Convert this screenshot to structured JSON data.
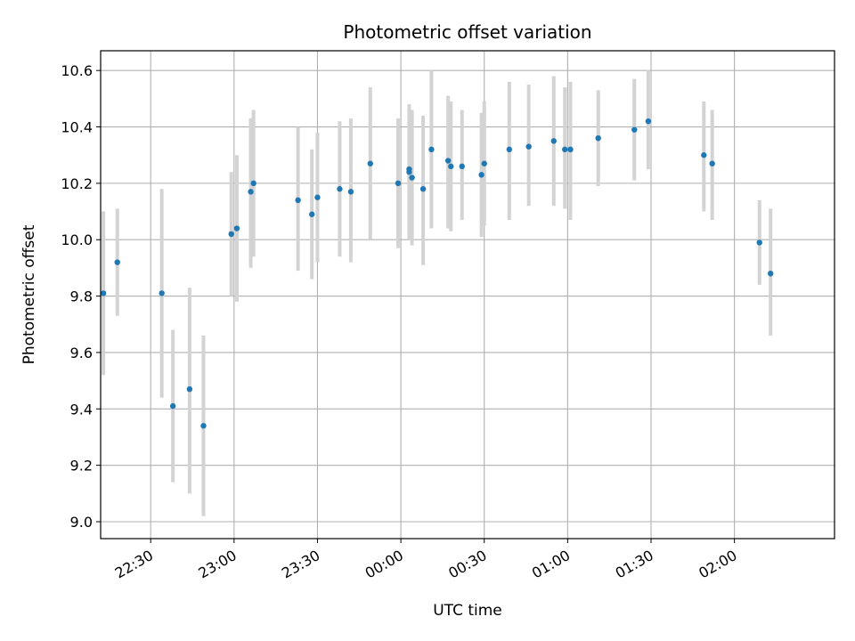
{
  "chart_data": {
    "type": "scatter",
    "title": "Photometric offset variation",
    "xlabel": "UTC time",
    "ylabel": "Photometric offset",
    "xlim": [
      "22:12",
      "02:36"
    ],
    "ylim": [
      8.94,
      10.67
    ],
    "x_ticks": [
      "22:30",
      "23:00",
      "23:30",
      "00:00",
      "00:30",
      "01:00",
      "01:30",
      "02:00"
    ],
    "y_ticks": [
      "9.0",
      "9.2",
      "9.4",
      "9.6",
      "9.8",
      "10.0",
      "10.2",
      "10.4",
      "10.6"
    ],
    "grid": true,
    "marker_color": "#1f77b4",
    "errorbar_color": "#d3d3d3",
    "points": [
      {
        "x": "22:13",
        "y": 9.81,
        "ylow": 9.52,
        "yhigh": 10.1
      },
      {
        "x": "22:18",
        "y": 9.92,
        "ylow": 9.73,
        "yhigh": 10.11
      },
      {
        "x": "22:34",
        "y": 9.81,
        "ylow": 9.44,
        "yhigh": 10.18
      },
      {
        "x": "22:38",
        "y": 9.41,
        "ylow": 9.14,
        "yhigh": 9.68
      },
      {
        "x": "22:44",
        "y": 9.47,
        "ylow": 9.1,
        "yhigh": 9.83
      },
      {
        "x": "22:49",
        "y": 9.34,
        "ylow": 9.02,
        "yhigh": 9.66
      },
      {
        "x": "22:59",
        "y": 10.02,
        "ylow": 9.8,
        "yhigh": 10.24
      },
      {
        "x": "23:01",
        "y": 10.04,
        "ylow": 9.78,
        "yhigh": 10.3
      },
      {
        "x": "23:06",
        "y": 10.17,
        "ylow": 9.9,
        "yhigh": 10.43
      },
      {
        "x": "23:07",
        "y": 10.2,
        "ylow": 9.94,
        "yhigh": 10.46
      },
      {
        "x": "23:23",
        "y": 10.14,
        "ylow": 9.89,
        "yhigh": 10.4
      },
      {
        "x": "23:28",
        "y": 10.09,
        "ylow": 9.86,
        "yhigh": 10.32
      },
      {
        "x": "23:30",
        "y": 10.15,
        "ylow": 9.92,
        "yhigh": 10.38
      },
      {
        "x": "23:38",
        "y": 10.18,
        "ylow": 9.94,
        "yhigh": 10.42
      },
      {
        "x": "23:42",
        "y": 10.17,
        "ylow": 9.92,
        "yhigh": 10.43
      },
      {
        "x": "23:49",
        "y": 10.27,
        "ylow": 10.0,
        "yhigh": 10.54
      },
      {
        "x": "23:59",
        "y": 10.2,
        "ylow": 9.97,
        "yhigh": 10.43
      },
      {
        "x": "00:03",
        "y": 10.24,
        "ylow": 10.0,
        "yhigh": 10.48
      },
      {
        "x": "00:03",
        "y": 10.25,
        "ylow": 10.03,
        "yhigh": 10.46
      },
      {
        "x": "00:04",
        "y": 10.22,
        "ylow": 9.98,
        "yhigh": 10.46
      },
      {
        "x": "00:08",
        "y": 10.18,
        "ylow": 9.91,
        "yhigh": 10.44
      },
      {
        "x": "00:11",
        "y": 10.32,
        "ylow": 10.04,
        "yhigh": 10.6
      },
      {
        "x": "00:17",
        "y": 10.28,
        "ylow": 10.04,
        "yhigh": 10.51
      },
      {
        "x": "00:18",
        "y": 10.26,
        "ylow": 10.03,
        "yhigh": 10.49
      },
      {
        "x": "00:22",
        "y": 10.26,
        "ylow": 10.07,
        "yhigh": 10.46
      },
      {
        "x": "00:29",
        "y": 10.23,
        "ylow": 10.01,
        "yhigh": 10.45
      },
      {
        "x": "00:30",
        "y": 10.27,
        "ylow": 10.05,
        "yhigh": 10.49
      },
      {
        "x": "00:39",
        "y": 10.32,
        "ylow": 10.07,
        "yhigh": 10.56
      },
      {
        "x": "00:46",
        "y": 10.33,
        "ylow": 10.12,
        "yhigh": 10.55
      },
      {
        "x": "00:55",
        "y": 10.35,
        "ylow": 10.12,
        "yhigh": 10.58
      },
      {
        "x": "00:59",
        "y": 10.32,
        "ylow": 10.11,
        "yhigh": 10.54
      },
      {
        "x": "01:01",
        "y": 10.32,
        "ylow": 10.07,
        "yhigh": 10.56
      },
      {
        "x": "01:11",
        "y": 10.36,
        "ylow": 10.19,
        "yhigh": 10.53
      },
      {
        "x": "01:24",
        "y": 10.39,
        "ylow": 10.21,
        "yhigh": 10.57
      },
      {
        "x": "01:29",
        "y": 10.42,
        "ylow": 10.25,
        "yhigh": 10.6
      },
      {
        "x": "01:49",
        "y": 10.3,
        "ylow": 10.1,
        "yhigh": 10.49
      },
      {
        "x": "01:52",
        "y": 10.27,
        "ylow": 10.07,
        "yhigh": 10.46
      },
      {
        "x": "02:09",
        "y": 9.99,
        "ylow": 9.84,
        "yhigh": 10.14
      },
      {
        "x": "02:13",
        "y": 9.88,
        "ylow": 9.66,
        "yhigh": 10.11
      }
    ]
  }
}
